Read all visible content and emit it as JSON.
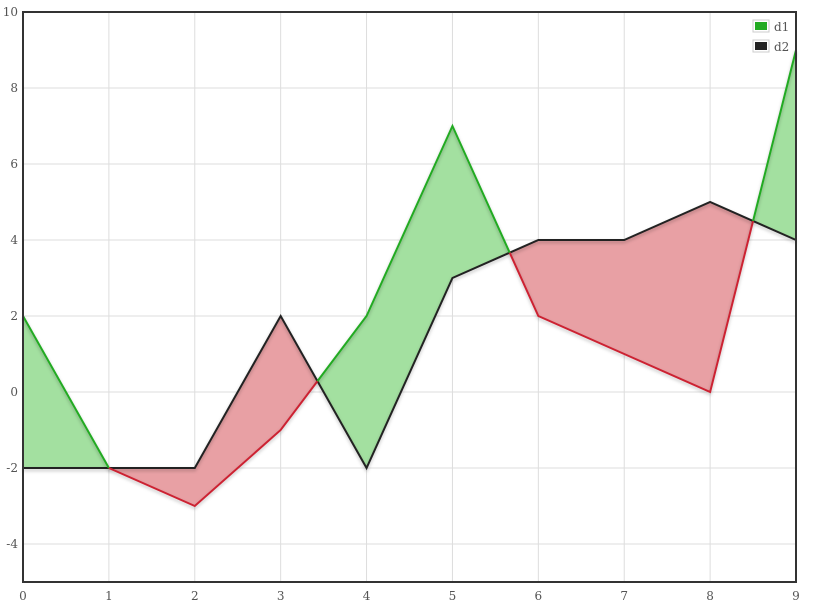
{
  "chart_data": {
    "type": "area",
    "title": "",
    "xlabel": "",
    "ylabel": "",
    "x": [
      0,
      1,
      2,
      3,
      4,
      5,
      6,
      7,
      8,
      9
    ],
    "xlim": [
      0,
      9
    ],
    "ylim": [
      -5,
      10
    ],
    "x_ticks": [
      "0",
      "1",
      "2",
      "3",
      "4",
      "5",
      "6",
      "7",
      "8",
      "9"
    ],
    "y_ticks": [
      "-4",
      "-2",
      "0",
      "2",
      "4",
      "6",
      "8",
      "10"
    ],
    "grid": true,
    "legend_position": "top-right",
    "series": [
      {
        "name": "d1",
        "color": "#22aa22",
        "values": [
          2,
          -2,
          -3,
          -1,
          2,
          7,
          2,
          1,
          0,
          9
        ]
      },
      {
        "name": "d2",
        "color": "#222222",
        "values": [
          -2,
          -2,
          -2,
          2,
          -2,
          3,
          4,
          4,
          5,
          4
        ]
      }
    ],
    "difference_fill": {
      "above_color": "#a3e0a0",
      "below_color": "#e8a0a4",
      "above_line_color": "#22aa22",
      "below_line_color": "#cc2233"
    }
  }
}
